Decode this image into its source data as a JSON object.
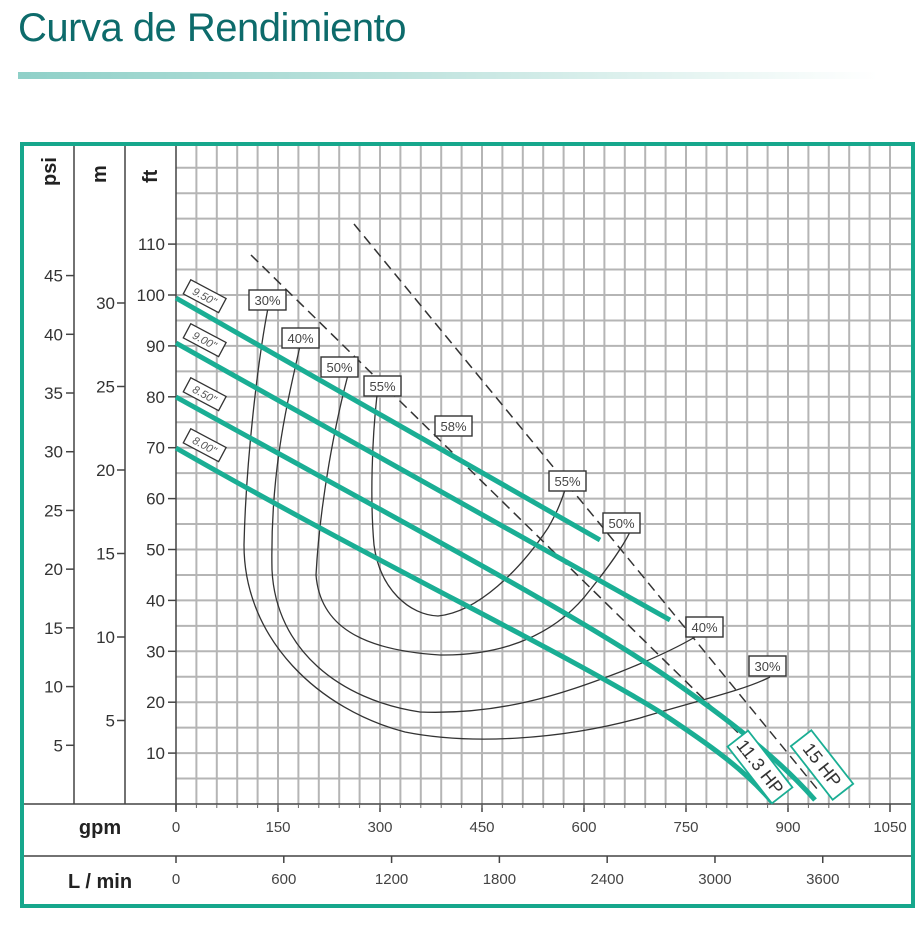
{
  "header": {
    "title": "Curva de Rendimiento"
  },
  "colors": {
    "title": "#0d6b6b",
    "frame": "#16a78c",
    "curve": "#1aae94",
    "grid": "#b5b5b5",
    "efficiency": "#333333"
  },
  "axes": {
    "psi_label": "psi",
    "m_label": "m",
    "ft_label": "ft",
    "gpm_label": "gpm",
    "lmin_label": "L / min",
    "psi_ticks": [
      "45",
      "40",
      "35",
      "30",
      "25",
      "20",
      "15",
      "10",
      "5"
    ],
    "m_ticks": [
      "30",
      "25",
      "20",
      "15",
      "10",
      "5"
    ],
    "ft_ticks": [
      "110",
      "100",
      "90",
      "80",
      "70",
      "60",
      "50",
      "40",
      "30",
      "20",
      "10"
    ],
    "gpm_ticks": [
      "0",
      "150",
      "300",
      "450",
      "600",
      "750",
      "900",
      "1050"
    ],
    "lmin_ticks": [
      "0",
      "600",
      "1200",
      "1800",
      "2400",
      "3000",
      "3600"
    ]
  },
  "labels": {
    "impeller": [
      "9.50\"",
      "9.00\"",
      "8.50\"",
      "8.00\""
    ],
    "eff_left": [
      "30%",
      "40%",
      "50%",
      "55%",
      "58%"
    ],
    "eff_right": [
      "55%",
      "50%",
      "40%",
      "30%"
    ],
    "hp": [
      "11.3 HP",
      "15 HP"
    ]
  },
  "chart_data": {
    "type": "line",
    "title": "Curva de Rendimiento",
    "xlabel": "gpm",
    "xlabel_secondary": "L / min",
    "ylabel": "ft",
    "ylabel_secondary": [
      "m",
      "psi"
    ],
    "xlim": [
      0,
      1050
    ],
    "ylim": [
      0,
      110
    ],
    "grid": true,
    "x_ticks": [
      0,
      150,
      300,
      450,
      600,
      750,
      900,
      1050
    ],
    "x_ticks_lmin": [
      0,
      600,
      1200,
      1800,
      2400,
      3000,
      3600
    ],
    "y_ticks_ft": [
      10,
      20,
      30,
      40,
      50,
      60,
      70,
      80,
      90,
      100,
      110
    ],
    "y_ticks_m": [
      5,
      10,
      15,
      20,
      25,
      30
    ],
    "y_ticks_psi": [
      5,
      10,
      15,
      20,
      25,
      30,
      35,
      40,
      45
    ],
    "series": [
      {
        "name": "9.50\" impeller",
        "x": [
          0,
          150,
          300,
          450,
          600,
          625
        ],
        "y": [
          100,
          89,
          78,
          67,
          56,
          52
        ]
      },
      {
        "name": "9.00\" impeller",
        "x": [
          0,
          150,
          300,
          450,
          600,
          725
        ],
        "y": [
          90,
          80,
          70,
          59,
          48,
          37
        ]
      },
      {
        "name": "8.50\" impeller",
        "x": [
          0,
          150,
          300,
          450,
          600,
          750,
          850,
          935
        ],
        "y": [
          80,
          70,
          60,
          50,
          40,
          27,
          14,
          0
        ]
      },
      {
        "name": "8.00\" impeller",
        "x": [
          0,
          150,
          300,
          450,
          600,
          750,
          820,
          875
        ],
        "y": [
          70,
          60,
          50,
          40,
          29,
          16,
          8,
          0
        ]
      },
      {
        "name": "30% efficiency",
        "x": [
          135,
          105,
          150,
          300,
          450,
          600,
          750,
          870
        ],
        "y": [
          98,
          50,
          28,
          16,
          13,
          15,
          21,
          26
        ]
      },
      {
        "name": "40% efficiency",
        "x": [
          170,
          150,
          200,
          300,
          450,
          600,
          760
        ],
        "y": [
          90,
          52,
          30,
          18,
          18,
          24,
          33
        ]
      },
      {
        "name": "50% efficiency",
        "x": [
          250,
          210,
          260,
          400,
          450,
          600,
          680
        ],
        "y": [
          85,
          45,
          33,
          30,
          31,
          42,
          53
        ]
      },
      {
        "name": "55% efficiency",
        "x": [
          290,
          285,
          330,
          380,
          450,
          570
        ],
        "y": [
          81,
          55,
          41,
          37,
          42,
          61
        ]
      },
      {
        "name": "11.3 HP",
        "x": [
          110,
          850
        ],
        "y": [
          108,
          8
        ],
        "style": "dashed"
      },
      {
        "name": "15 HP",
        "x": [
          260,
          940
        ],
        "y": [
          114,
          3
        ],
        "style": "dashed"
      }
    ],
    "annotations": [
      "9.50\"",
      "9.00\"",
      "8.50\"",
      "8.00\"",
      "30%",
      "40%",
      "50%",
      "55%",
      "58%",
      "55%",
      "50%",
      "40%",
      "30%",
      "11.3 HP",
      "15 HP"
    ]
  }
}
